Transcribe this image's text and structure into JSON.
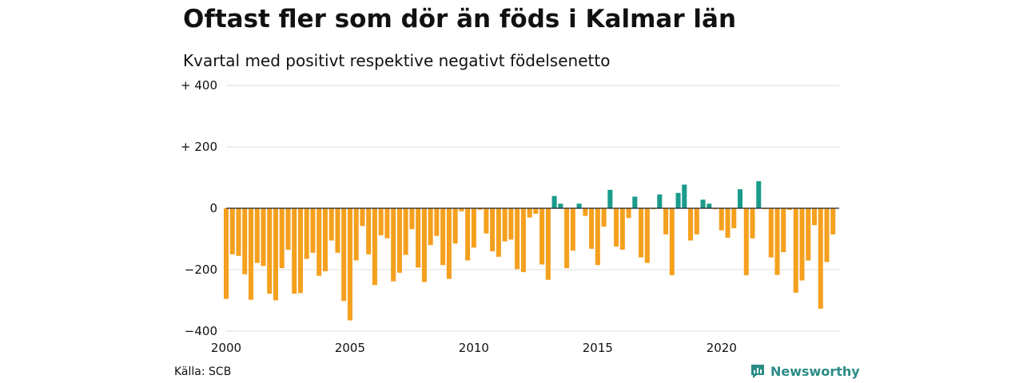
{
  "title": "Oftast fler som dör än föds i Kalmar län",
  "subtitle": "Kvartal med positivt respektive negativt födelsenetto",
  "source": "Källa: SCB",
  "brand": {
    "name": "Newsworthy",
    "icon": "newsworthy-logo-icon",
    "color": "#2b8c86"
  },
  "colors": {
    "positive": "#1a9b8b",
    "negative": "#f5a01e",
    "grid": "#dddddd",
    "zero": "#222222"
  },
  "chart_data": {
    "type": "bar",
    "x_start": 2000,
    "period": "quarter",
    "xlim": [
      2000,
      2024.75
    ],
    "ylim": [
      -400,
      400
    ],
    "y_ticks": [
      400,
      200,
      0,
      -200,
      -400
    ],
    "y_tick_labels": [
      "+ 400",
      "+ 200",
      "0",
      "−200",
      "−400"
    ],
    "x_ticks": [
      2000,
      2005,
      2010,
      2015,
      2020
    ],
    "x_tick_labels": [
      "2000",
      "2005",
      "2010",
      "2015",
      "2020"
    ],
    "grid": true,
    "values": [
      -295,
      -150,
      -155,
      -215,
      -298,
      -178,
      -188,
      -278,
      -300,
      -195,
      -135,
      -278,
      -276,
      -165,
      -145,
      -220,
      -205,
      -105,
      -145,
      -302,
      -365,
      -170,
      -58,
      -150,
      -250,
      -88,
      -98,
      -238,
      -210,
      -152,
      -68,
      -193,
      -240,
      -120,
      -90,
      -185,
      -230,
      -115,
      -10,
      -170,
      -128,
      -5,
      -82,
      -140,
      -158,
      -108,
      -102,
      -198,
      -208,
      -30,
      -18,
      -183,
      -233,
      40,
      15,
      -195,
      -138,
      15,
      -25,
      -132,
      -185,
      -60,
      60,
      -125,
      -135,
      -32,
      38,
      -160,
      -178,
      -3,
      45,
      -85,
      -218,
      50,
      77,
      -105,
      -85,
      28,
      15,
      -3,
      -72,
      -96,
      -65,
      62,
      -218,
      -98,
      88,
      -3,
      -160,
      -217,
      -143,
      -5,
      -275,
      -235,
      -170,
      -55,
      -327,
      -175,
      -85
    ]
  }
}
